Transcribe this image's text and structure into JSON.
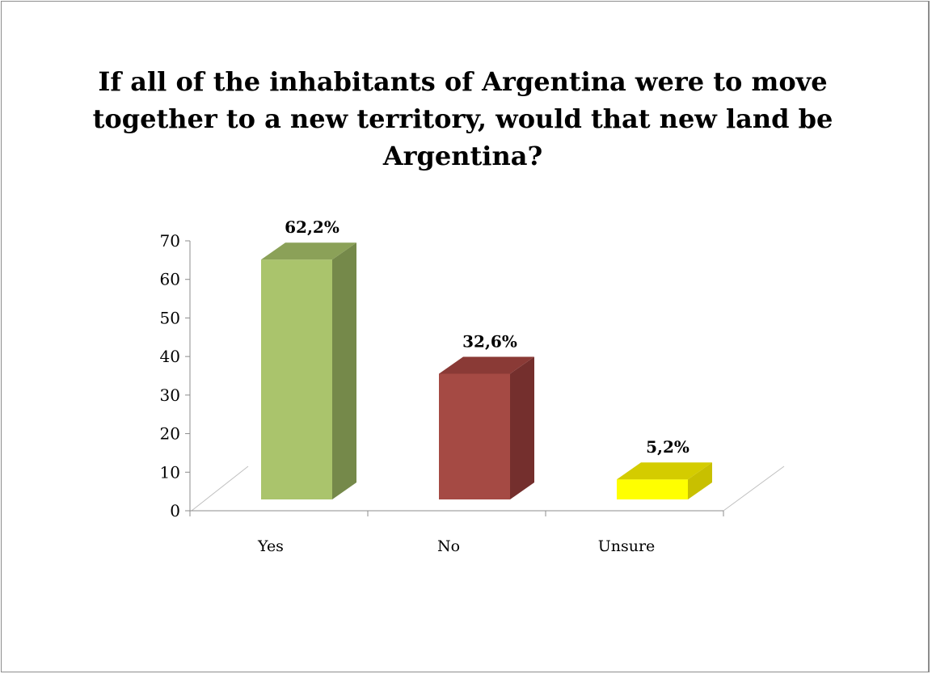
{
  "chart_data": {
    "type": "bar",
    "title": "If all of the inhabitants of Argentina were to move together to a new territory, would that new land be Argentina?",
    "categories": [
      "Yes",
      "No",
      "Unsure"
    ],
    "values": [
      62.2,
      32.6,
      5.2
    ],
    "data_labels": [
      "62,2%",
      "32,6%",
      "5,2%"
    ],
    "yticks": [
      "0",
      "10",
      "20",
      "30",
      "40",
      "50",
      "60",
      "70"
    ],
    "ylim": [
      0,
      70
    ],
    "grid": false,
    "legend": "none",
    "colors": {
      "Yes": {
        "front": "#aac46c",
        "side": "#75894a",
        "top": "#8ba158"
      },
      "No": {
        "front": "#a54a44",
        "side": "#742f2d",
        "top": "#8a3a36"
      },
      "Unsure": {
        "front": "#ffff00",
        "side": "#c8c000",
        "top": "#d4cc00"
      }
    }
  }
}
